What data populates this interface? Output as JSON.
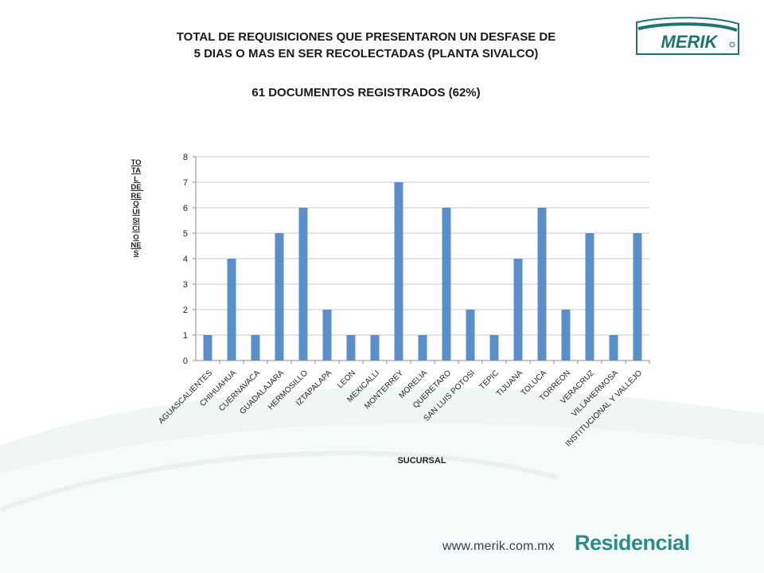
{
  "header": {
    "title_line1": "TOTAL DE REQUISICIONES QUE PRESENTARON UN DESFASE DE",
    "title_line2": "5 DIAS O MAS EN SER RECOLECTADAS  (PLANTA SIVALCO)",
    "subtitle": "61 DOCUMENTOS REGISTRADOS (62%)"
  },
  "logo": {
    "text": "MERIK",
    "color": "#1e7470"
  },
  "footer": {
    "url": "www.merik.com.mx",
    "brand": "Residencial"
  },
  "colors": {
    "bar": "#5b8fc9",
    "grid": "#c8c8c8",
    "axis": "#8c8c8c",
    "accent": "#2d8c8a"
  },
  "chart_data": {
    "type": "bar",
    "xlabel": "SUCURSAL",
    "ylabel": "TOTAL DE REQUISICIONES",
    "ylim": [
      0,
      8
    ],
    "yticks": [
      0,
      1,
      2,
      3,
      4,
      5,
      6,
      7,
      8
    ],
    "grid": true,
    "categories": [
      "AGUASCALIENTES",
      "CHIHUAHUA",
      "CUERNAVACA",
      "GUADALAJARA",
      "HERMOSILLO",
      "IZTAPALAPA",
      "LEON",
      "MEXICALLI",
      "MONTERREY",
      "MORELIA",
      "QUERETARO",
      "SAN LUIS POTOSI",
      "TEPIC",
      "TIJUANA",
      "TOLUCA",
      "TORREON",
      "VERACRUZ",
      "VILLAHERMOSA",
      "INSTITUCIONAL Y VALLEJO"
    ],
    "values": [
      1,
      4,
      1,
      5,
      6,
      2,
      1,
      1,
      7,
      1,
      6,
      2,
      1,
      4,
      6,
      2,
      5,
      1,
      5
    ]
  }
}
